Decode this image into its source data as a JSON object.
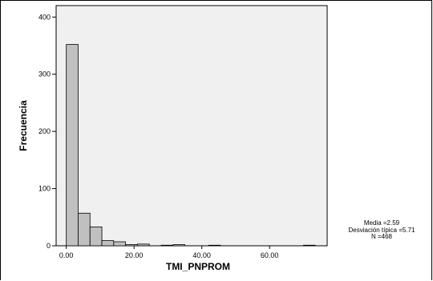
{
  "chart_data": {
    "type": "bar",
    "subtype": "histogram",
    "title": "",
    "xlabel": "TMI_PNPROM",
    "ylabel": "Frecuencia",
    "xlim": [
      -3,
      77
    ],
    "ylim": [
      0,
      420
    ],
    "x_ticks": [
      {
        "value": 0,
        "label": "0.00"
      },
      {
        "value": 20,
        "label": "20.00"
      },
      {
        "value": 40,
        "label": "40.00"
      },
      {
        "value": 60,
        "label": "60.00"
      }
    ],
    "y_ticks": [
      0,
      100,
      200,
      300,
      400
    ],
    "bin_width": 3.5,
    "bins": [
      {
        "start": 0.0,
        "count": 352
      },
      {
        "start": 3.5,
        "count": 57
      },
      {
        "start": 7.0,
        "count": 33
      },
      {
        "start": 10.5,
        "count": 9
      },
      {
        "start": 14.0,
        "count": 7
      },
      {
        "start": 17.5,
        "count": 2
      },
      {
        "start": 21.0,
        "count": 3
      },
      {
        "start": 28.0,
        "count": 1
      },
      {
        "start": 31.5,
        "count": 2
      },
      {
        "start": 42.0,
        "count": 1
      },
      {
        "start": 70.0,
        "count": 1
      }
    ],
    "grid": false,
    "colors": {
      "bar_fill": "#c0c0c0",
      "bar_stroke": "#000000",
      "plot_bg": "#f0f0f0"
    }
  },
  "stats": {
    "mean_line": "Media =2.59",
    "std_line": "Desviación típica =5.71",
    "n_line": "N =468"
  }
}
